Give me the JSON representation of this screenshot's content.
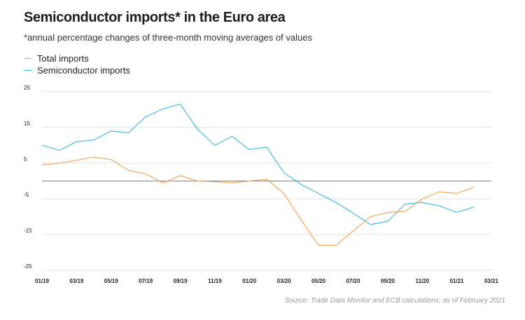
{
  "chart_data": {
    "type": "line",
    "title": "Semiconductor imports* in the Euro area",
    "subtitle": "*annual percentage changes of three-month moving averages of values",
    "source": "Source: Trade Data Monitor and ECB calculations, as of February 2021",
    "ylim": [
      -25,
      25
    ],
    "yticks": [
      "25",
      "15",
      "5",
      "-5",
      "-15",
      "-25"
    ],
    "ytick_values": [
      25,
      15,
      5,
      -5,
      -15,
      -25
    ],
    "x_tick_labels": [
      "01/19",
      "03/19",
      "05/19",
      "07/19",
      "09/19",
      "11/19",
      "01/20",
      "03/20",
      "05/20",
      "07/20",
      "09/20",
      "11/20",
      "01/21",
      "03/21"
    ],
    "x_months": [
      "01/19",
      "02/19",
      "03/19",
      "04/19",
      "05/19",
      "06/19",
      "07/19",
      "08/19",
      "09/19",
      "10/19",
      "11/19",
      "12/19",
      "01/20",
      "02/20",
      "03/20",
      "04/20",
      "05/20",
      "06/20",
      "07/20",
      "08/20",
      "09/20",
      "10/20",
      "11/20",
      "12/20",
      "01/21",
      "02/21"
    ],
    "grid": true,
    "legend": "top-left",
    "series": [
      {
        "name": "Total imports",
        "color": "#f5a04a",
        "values": [
          4.5,
          5.0,
          5.8,
          6.7,
          6.0,
          3.0,
          2.0,
          -0.5,
          1.5,
          0.0,
          -0.2,
          -0.5,
          0.0,
          0.5,
          -3.5,
          -11.0,
          -18.0,
          -18.0,
          -14.0,
          -10.0,
          -8.8,
          -8.5,
          -5.0,
          -3.0,
          -3.5,
          -1.7
        ]
      },
      {
        "name": "Semiconductor imports",
        "color": "#39b6e6",
        "values": [
          10.0,
          8.6,
          11.0,
          11.5,
          14.0,
          13.5,
          18.0,
          20.2,
          21.5,
          14.5,
          10.0,
          12.5,
          8.8,
          9.5,
          2.3,
          -1.0,
          -3.5,
          -6.0,
          -9.0,
          -12.2,
          -11.3,
          -6.5,
          -6.0,
          -7.0,
          -8.8,
          -7.3
        ]
      }
    ]
  }
}
